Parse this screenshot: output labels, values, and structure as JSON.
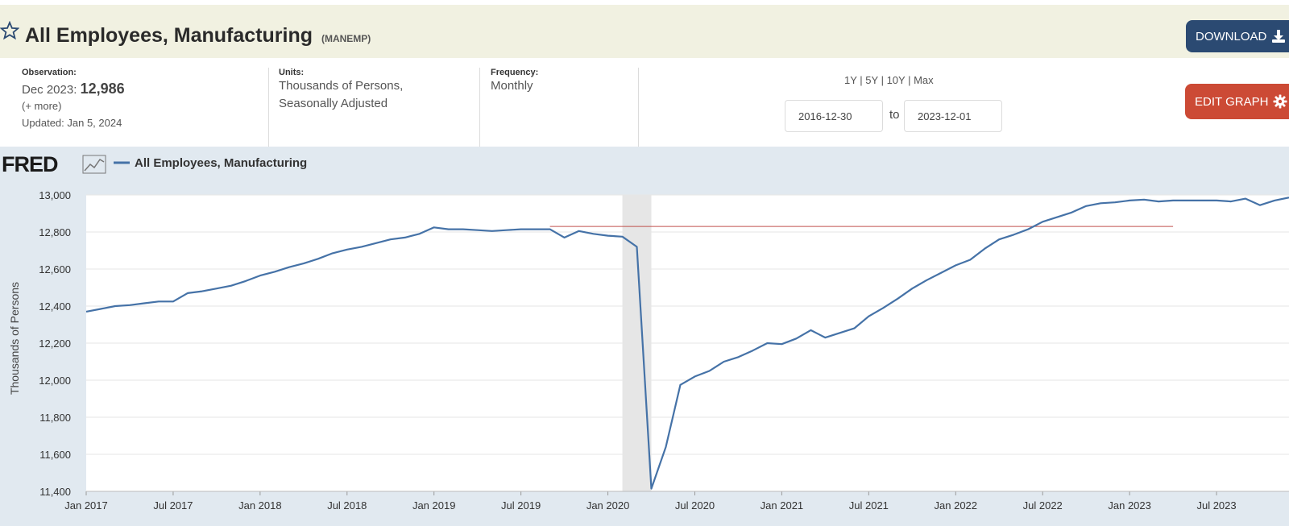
{
  "header": {
    "title": "All Employees, Manufacturing",
    "series_id": "(MANEMP)",
    "download_label": "DOWNLOAD",
    "star_icon": "star-outline-icon",
    "download_icon": "download-icon"
  },
  "meta": {
    "observation_label": "Observation:",
    "observation_date": "Dec 2023:",
    "observation_value": "12,986",
    "more_label": "(+ more)",
    "updated": "Updated: Jan 5, 2024",
    "units_label": "Units:",
    "units_line1": "Thousands of Persons,",
    "units_line2": "Seasonally Adjusted",
    "frequency_label": "Frequency:",
    "frequency_value": "Monthly"
  },
  "controls": {
    "ranges": [
      "1Y",
      "5Y",
      "10Y",
      "Max"
    ],
    "start_date": "2016-12-30",
    "to_label": "to",
    "end_date": "2023-12-01",
    "edit_label": "EDIT GRAPH",
    "gear_icon": "gear-icon"
  },
  "chart_data": {
    "type": "line",
    "logo": "FRED",
    "legend": "All Employees, Manufacturing",
    "ylabel": "Thousands of Persons",
    "xlabel": "",
    "ylim": [
      11400,
      13000
    ],
    "yticks": [
      "13,000",
      "12,800",
      "12,600",
      "12,400",
      "12,200",
      "12,000",
      "11,800",
      "11,600",
      "11,400"
    ],
    "ytick_values": [
      13000,
      12800,
      12600,
      12400,
      12200,
      12000,
      11800,
      11600,
      11400
    ],
    "xticks": [
      "Jan 2017",
      "Jul 2017",
      "Jan 2018",
      "Jul 2018",
      "Jan 2019",
      "Jul 2019",
      "Jan 2020",
      "Jul 2020",
      "Jan 2021",
      "Jul 2021",
      "Jan 2022",
      "Jul 2022",
      "Jan 2023",
      "Jul 2023"
    ],
    "grid": true,
    "colors": {
      "line": "#4572a7",
      "hline": "#c0504d",
      "recession": "#e6e6e6"
    },
    "recession": {
      "start": "2020-02",
      "end": "2020-04"
    },
    "hline": {
      "y": 12830,
      "from": "2019-09",
      "to": "2023-04"
    },
    "series": [
      {
        "name": "All Employees, Manufacturing",
        "start": "2017-01",
        "values": [
          12370,
          12385,
          12400,
          12405,
          12415,
          12425,
          12425,
          12470,
          12480,
          12495,
          12510,
          12535,
          12565,
          12585,
          12610,
          12630,
          12655,
          12685,
          12705,
          12720,
          12740,
          12760,
          12770,
          12790,
          12825,
          12815,
          12815,
          12810,
          12805,
          12810,
          12815,
          12815,
          12815,
          12770,
          12805,
          12790,
          12780,
          12775,
          12720,
          11415,
          11640,
          11975,
          12020,
          12050,
          12100,
          12125,
          12160,
          12200,
          12195,
          12225,
          12270,
          12230,
          12255,
          12280,
          12345,
          12390,
          12440,
          12495,
          12540,
          12580,
          12620,
          12650,
          12710,
          12760,
          12785,
          12815,
          12855,
          12880,
          12905,
          12940,
          12955,
          12960,
          12970,
          12975,
          12965,
          12970,
          12970,
          12970,
          12970,
          12965,
          12980,
          12945,
          12970,
          12986
        ]
      }
    ]
  }
}
